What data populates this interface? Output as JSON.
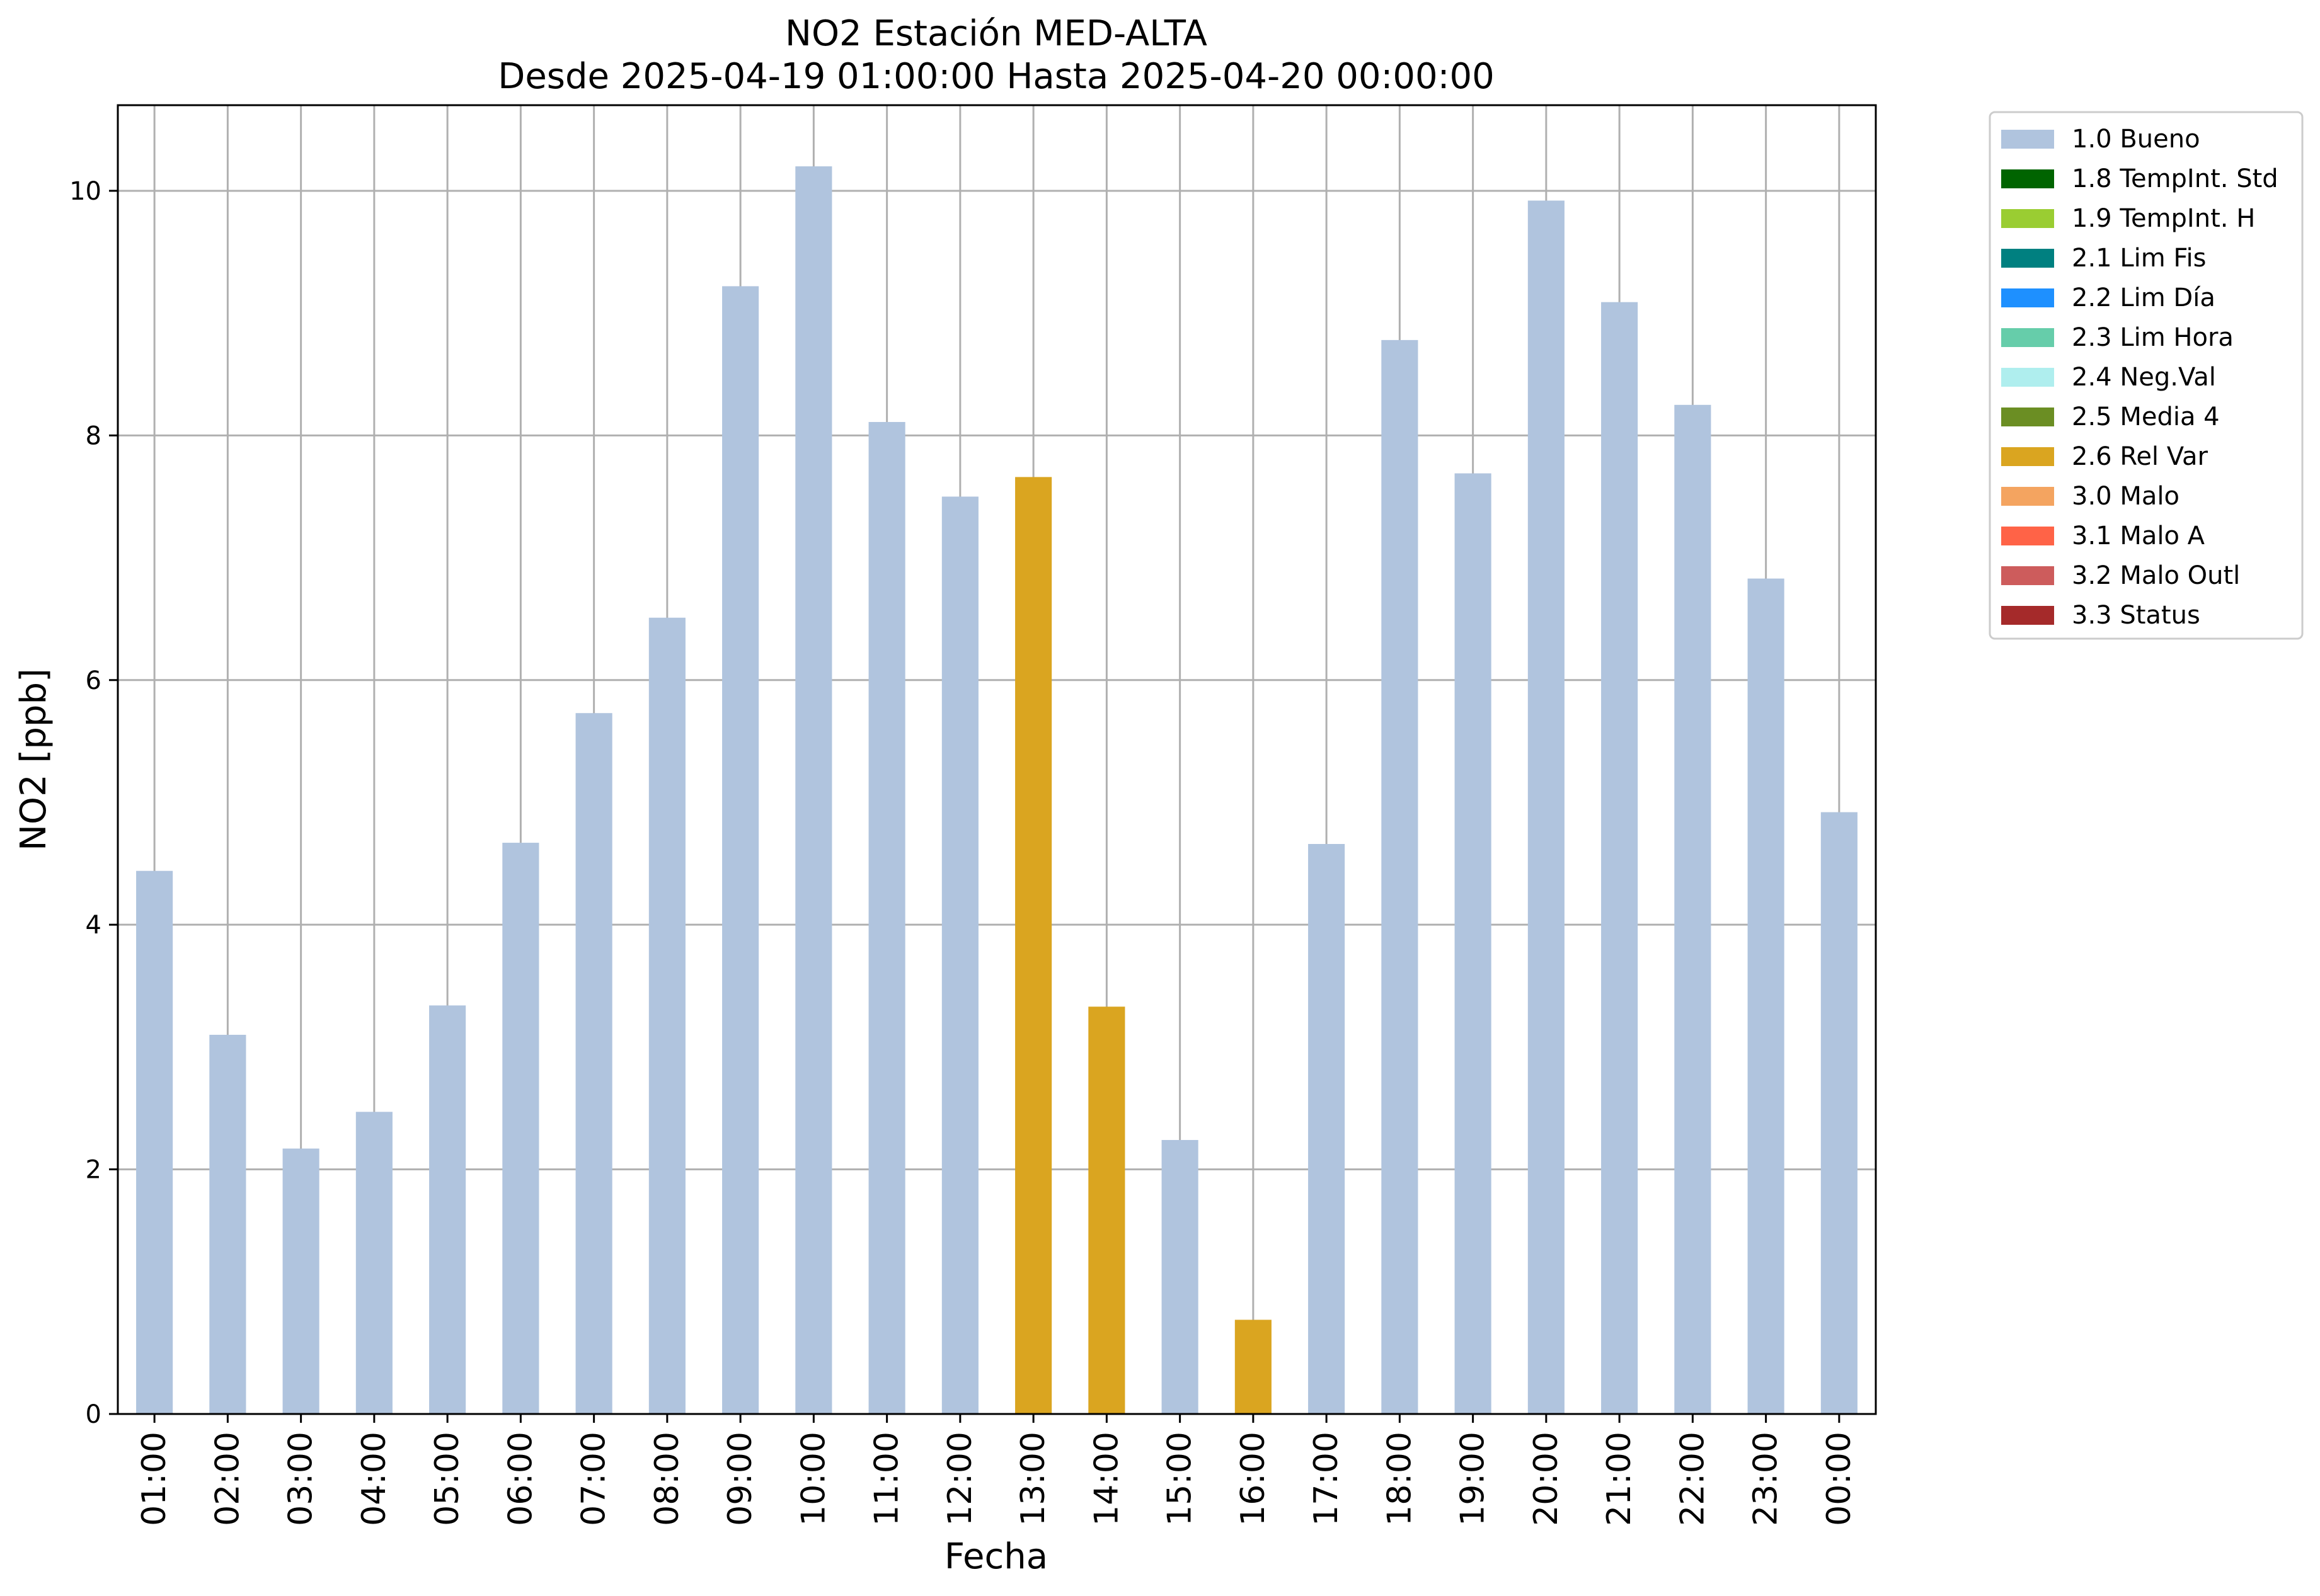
{
  "chart_data": {
    "type": "bar",
    "title": "NO2 Estación MED-ALTA",
    "subtitle": "Desde 2025-04-19 01:00:00 Hasta 2025-04-20 00:00:00",
    "xlabel": "Fecha",
    "ylabel": "NO2 [ppb]",
    "ylim": [
      0,
      10.7
    ],
    "yticks": [
      0,
      2,
      4,
      6,
      8,
      10
    ],
    "grid": true,
    "legend_position": "outside-top-right",
    "categories": [
      "01:00",
      "02:00",
      "03:00",
      "04:00",
      "05:00",
      "06:00",
      "07:00",
      "08:00",
      "09:00",
      "10:00",
      "11:00",
      "12:00",
      "13:00",
      "14:00",
      "15:00",
      "16:00",
      "17:00",
      "18:00",
      "19:00",
      "20:00",
      "21:00",
      "22:00",
      "23:00",
      "00:00"
    ],
    "values": [
      4.44,
      3.1,
      2.17,
      2.47,
      3.34,
      4.67,
      5.73,
      6.51,
      9.22,
      10.2,
      8.11,
      7.5,
      7.66,
      3.33,
      2.24,
      0.77,
      4.66,
      8.78,
      7.69,
      9.92,
      9.09,
      8.25,
      6.83,
      4.92
    ],
    "flags": [
      "1.0 Bueno",
      "1.0 Bueno",
      "1.0 Bueno",
      "1.0 Bueno",
      "1.0 Bueno",
      "1.0 Bueno",
      "1.0 Bueno",
      "1.0 Bueno",
      "1.0 Bueno",
      "1.0 Bueno",
      "1.0 Bueno",
      "1.0 Bueno",
      "2.6 Rel Var",
      "2.6 Rel Var",
      "1.0 Bueno",
      "2.6 Rel Var",
      "1.0 Bueno",
      "1.0 Bueno",
      "1.0 Bueno",
      "1.0 Bueno",
      "1.0 Bueno",
      "1.0 Bueno",
      "1.0 Bueno",
      "1.0 Bueno"
    ],
    "legend": [
      {
        "label": "1.0 Bueno",
        "color": "#b0c4de"
      },
      {
        "label": "1.8 TempInt. Std",
        "color": "#006400"
      },
      {
        "label": "1.9 TempInt. H",
        "color": "#9acd32"
      },
      {
        "label": "2.1 Lim Fis",
        "color": "#008080"
      },
      {
        "label": "2.2 Lim Día",
        "color": "#1e90ff"
      },
      {
        "label": "2.3 Lim Hora",
        "color": "#66cdaa"
      },
      {
        "label": "2.4 Neg.Val",
        "color": "#afeeee"
      },
      {
        "label": "2.5 Media 4",
        "color": "#6b8e23"
      },
      {
        "label": "2.6 Rel Var",
        "color": "#daa520"
      },
      {
        "label": "3.0 Malo",
        "color": "#f4a460"
      },
      {
        "label": "3.1 Malo A",
        "color": "#ff6347"
      },
      {
        "label": "3.2 Malo Outl",
        "color": "#cd5c5c"
      },
      {
        "label": "3.3 Status",
        "color": "#a52a2a"
      }
    ]
  }
}
